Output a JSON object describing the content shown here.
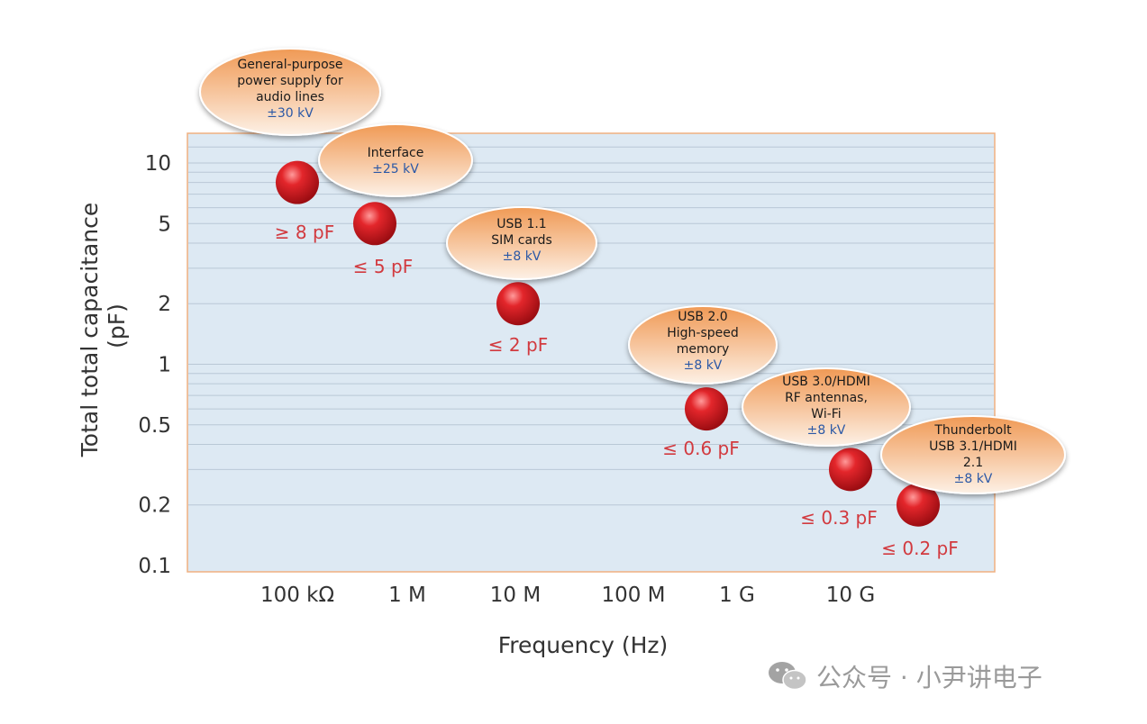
{
  "chart_data": {
    "type": "scatter",
    "xlabel": "Frequency (Hz)",
    "ylabel_line1": "Total total capacitance",
    "ylabel_line2": "(pF)",
    "x_tick_labels": [
      "100 kΩ",
      "1 M",
      "10 M",
      "100 M",
      "1 G",
      "10 G"
    ],
    "y_scale": "log",
    "ylim": [
      0.1,
      14
    ],
    "y_tick_values": [
      10,
      5,
      2,
      1,
      0.5,
      0.2,
      0.1
    ],
    "y_tick_labels": [
      "10",
      "5",
      "2",
      "1",
      "0.5",
      "0.2",
      "0.1"
    ],
    "colors": {
      "plot_bg": "#dde9f3",
      "plot_border": "#f0b080",
      "grid": "#b9c8d6",
      "point": "#d41e24",
      "point_label": "#d23a3f",
      "bubble": "#f2a66a",
      "bubble_text": "#1a1a1a",
      "kv_text": "#2b58a6"
    },
    "points": [
      {
        "value_label": "≥ 8 pF",
        "y": 8,
        "x_position": "100 kΩ",
        "category_lines": [
          "General-purpose",
          "power supply for",
          "audio lines"
        ],
        "esd": "±30 kV"
      },
      {
        "value_label": "≤ 5 pF",
        "y": 5,
        "x_position": "1 M",
        "category_lines": [
          "Interface"
        ],
        "esd": "±25 kV"
      },
      {
        "value_label": "≤ 2 pF",
        "y": 2,
        "x_position": "10 M",
        "category_lines": [
          "USB 1.1",
          "SIM cards"
        ],
        "esd": "±8 kV"
      },
      {
        "value_label": "≤ 0.6 pF",
        "y": 0.6,
        "x_position": "between 100 M and 1 G",
        "category_lines": [
          "USB 2.0",
          "High-speed",
          "memory"
        ],
        "esd": "±8 kV"
      },
      {
        "value_label": "≤ 0.3 pF",
        "y": 0.3,
        "x_position": "10 G",
        "category_lines": [
          "USB 3.0/HDMI",
          "RF antennas,",
          "Wi-Fi"
        ],
        "esd": "±8 kV"
      },
      {
        "value_label": "≤ 0.2 pF",
        "y": 0.2,
        "x_position": "above 10 G",
        "category_lines": [
          "Thunderbolt",
          "USB 3.1/HDMI",
          "2.1"
        ],
        "esd": "±8 kV"
      }
    ]
  },
  "watermark": {
    "text": "公众号 · 小尹讲电子",
    "icon": "wechat-icon"
  }
}
